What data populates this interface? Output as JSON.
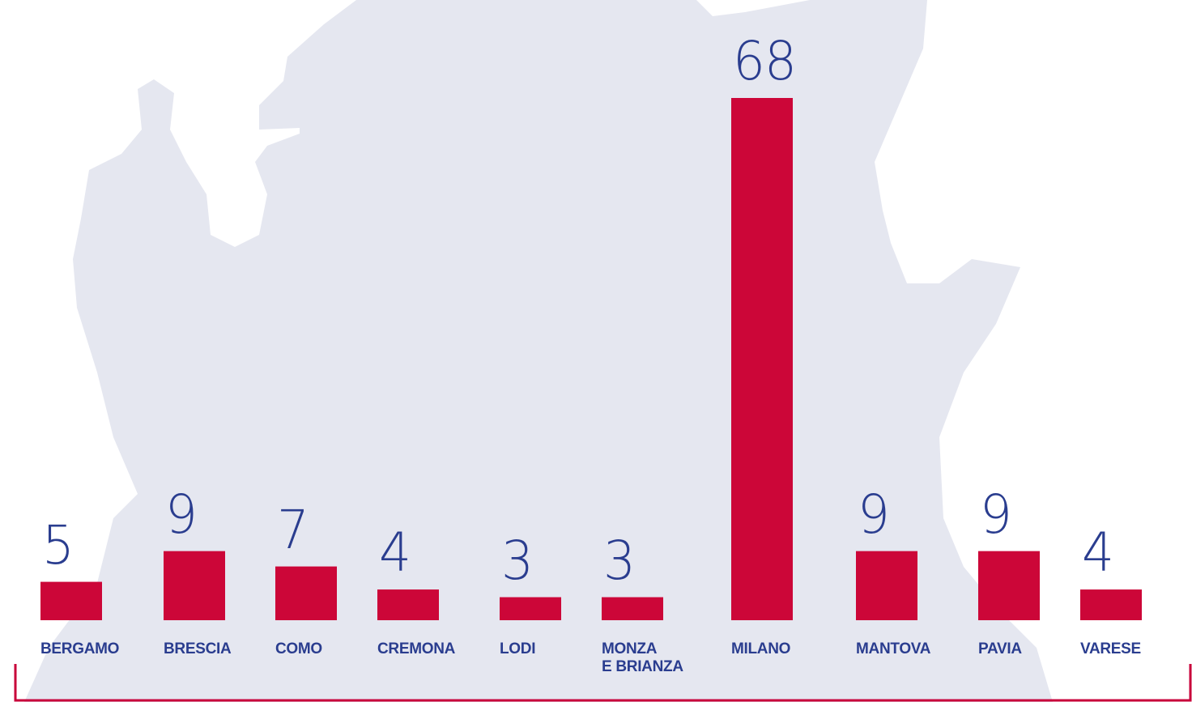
{
  "chart_data": {
    "type": "bar",
    "categories": [
      "BERGAMO",
      "BRESCIA",
      "COMO",
      "CREMONA",
      "LODI",
      "MONZA\nE BRIANZA",
      "MILANO",
      "MANTOVA",
      "PAVIA",
      "VARESE"
    ],
    "values": [
      5,
      9,
      7,
      4,
      3,
      3,
      68,
      9,
      9,
      4
    ],
    "color": "#cc0638"
  }
}
